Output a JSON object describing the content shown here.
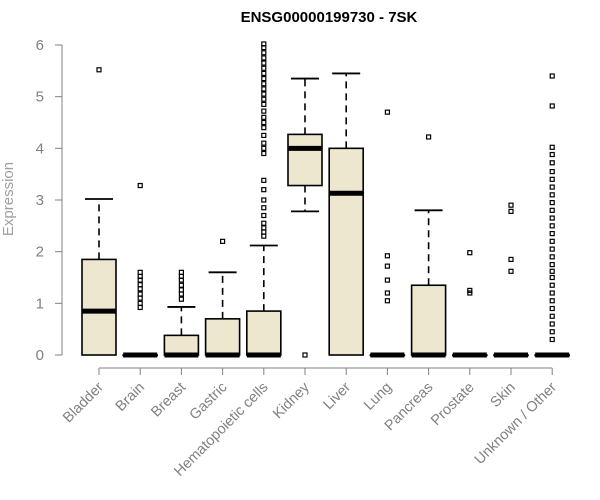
{
  "chart_data": {
    "type": "boxplot",
    "title": "ENSG00000199730 - 7SK",
    "xlabel": "",
    "ylabel": "Expression",
    "ylim": [
      0,
      6
    ],
    "yticks": [
      0,
      1,
      2,
      3,
      4,
      5,
      6
    ],
    "fill_color": "#ede7cf",
    "categories": [
      "Bladder",
      "Brain",
      "Breast",
      "Gastric",
      "Hematopoietic cells",
      "Kidney",
      "Liver",
      "Lung",
      "Pancreas",
      "Prostate",
      "Skin",
      "Unknown / Other"
    ],
    "boxes": [
      {
        "name": "Bladder",
        "lower_whisker": 0,
        "q1": 0,
        "median": 0.85,
        "q3": 1.85,
        "upper_whisker": 3.02,
        "outliers": [
          5.52
        ]
      },
      {
        "name": "Brain",
        "lower_whisker": 0,
        "q1": 0,
        "median": 0,
        "q3": 0,
        "upper_whisker": 0,
        "outliers": [
          0.92,
          1.0,
          1.1,
          1.18,
          1.28,
          1.36,
          1.45,
          1.52,
          1.6,
          3.28
        ]
      },
      {
        "name": "Breast",
        "lower_whisker": 0,
        "q1": 0,
        "median": 0,
        "q3": 0.38,
        "upper_whisker": 0.93,
        "outliers": [
          1.08,
          1.18,
          1.26,
          1.35,
          1.45,
          1.52,
          1.6
        ]
      },
      {
        "name": "Gastric",
        "lower_whisker": 0,
        "q1": 0,
        "median": 0,
        "q3": 0.7,
        "upper_whisker": 1.6,
        "outliers": [
          2.2
        ]
      },
      {
        "name": "Hematopoietic cells",
        "lower_whisker": 0,
        "q1": 0,
        "median": 0,
        "q3": 0.85,
        "upper_whisker": 2.12,
        "outliers": [
          2.3,
          2.38,
          2.46,
          2.55,
          2.7,
          2.85,
          3.0,
          3.2,
          3.38,
          3.9,
          4.0,
          4.1,
          4.25,
          4.4,
          4.5,
          4.6,
          4.72,
          4.85,
          4.95,
          5.05,
          5.15,
          5.25,
          5.35,
          5.45,
          5.55,
          5.65,
          5.75,
          5.85,
          5.95,
          6.02
        ]
      },
      {
        "name": "Kidney",
        "lower_whisker": 2.78,
        "q1": 3.28,
        "median": 4.0,
        "q3": 4.27,
        "upper_whisker": 5.35,
        "outliers": [
          0
        ]
      },
      {
        "name": "Liver",
        "lower_whisker": 0,
        "q1": 0,
        "median": 3.13,
        "q3": 4.0,
        "upper_whisker": 5.45,
        "outliers": []
      },
      {
        "name": "Lung",
        "lower_whisker": 0,
        "q1": 0,
        "median": 0,
        "q3": 0,
        "upper_whisker": 0,
        "outliers": [
          1.05,
          1.2,
          1.45,
          1.72,
          1.92,
          4.7
        ]
      },
      {
        "name": "Pancreas",
        "lower_whisker": 0,
        "q1": 0,
        "median": 0,
        "q3": 1.35,
        "upper_whisker": 2.8,
        "outliers": [
          4.22
        ]
      },
      {
        "name": "Prostate",
        "lower_whisker": 0,
        "q1": 0,
        "median": 0,
        "q3": 0,
        "upper_whisker": 0,
        "outliers": [
          1.2,
          1.25,
          1.98
        ]
      },
      {
        "name": "Skin",
        "lower_whisker": 0,
        "q1": 0,
        "median": 0,
        "q3": 0,
        "upper_whisker": 0,
        "outliers": [
          1.62,
          1.85,
          2.78,
          2.9
        ]
      },
      {
        "name": "Unknown / Other",
        "lower_whisker": 0,
        "q1": 0,
        "median": 0,
        "q3": 0,
        "upper_whisker": 0,
        "outliers": [
          0.3,
          0.45,
          0.6,
          0.75,
          0.9,
          1.05,
          1.2,
          1.35,
          1.5,
          1.62,
          1.75,
          1.9,
          2.05,
          2.2,
          2.35,
          2.5,
          2.65,
          2.8,
          2.95,
          3.1,
          3.25,
          3.4,
          3.55,
          3.72,
          3.88,
          4.02,
          4.82,
          5.4
        ]
      }
    ]
  }
}
